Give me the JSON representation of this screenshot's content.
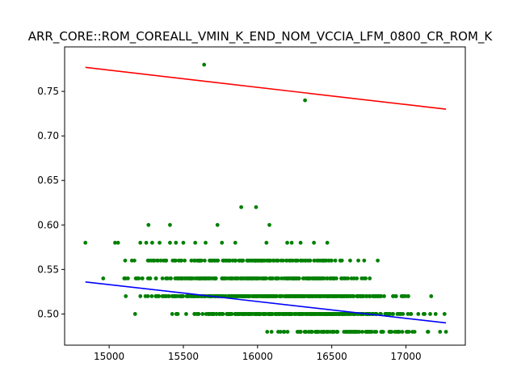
{
  "chart_data": {
    "type": "scatter",
    "title": "ARR_CORE::ROM_COREALL_VMIN_K_END_NOM_VCCIA_LFM_0800_CR_ROM_K",
    "xlabel": "",
    "ylabel": "",
    "xlim": [
      14700,
      17400
    ],
    "ylim": [
      0.465,
      0.8
    ],
    "x_ticks": [
      15000,
      15500,
      16000,
      16500,
      17000
    ],
    "y_ticks": [
      0.5,
      0.55,
      0.6,
      0.65,
      0.7,
      0.75
    ],
    "x_tick_labels": [
      "15000",
      "15500",
      "16000",
      "16500",
      "17000"
    ],
    "y_tick_labels": [
      "0.50",
      "0.55",
      "0.60",
      "0.65",
      "0.70",
      "0.75"
    ],
    "grid": false,
    "colors": {
      "points": "#008000",
      "upper_fit": "#ff0000",
      "lower_fit": "#0000ff",
      "axes": "#000000"
    },
    "bands": [
      {
        "y": 0.48,
        "x_start": 15900,
        "x_end": 17250,
        "count": 90
      },
      {
        "y": 0.5,
        "x_start": 15330,
        "x_end": 17200,
        "count": 320
      },
      {
        "y": 0.52,
        "x_start": 15050,
        "x_end": 17150,
        "count": 360
      },
      {
        "y": 0.54,
        "x_start": 15050,
        "x_end": 16850,
        "count": 240
      },
      {
        "y": 0.56,
        "x_start": 15050,
        "x_end": 16800,
        "count": 170
      }
    ],
    "points": [
      {
        "x": 14840,
        "y": 0.58
      },
      {
        "x": 15040,
        "y": 0.58
      },
      {
        "x": 15060,
        "y": 0.58
      },
      {
        "x": 15210,
        "y": 0.58
      },
      {
        "x": 15250,
        "y": 0.58
      },
      {
        "x": 15290,
        "y": 0.58
      },
      {
        "x": 15340,
        "y": 0.58
      },
      {
        "x": 15410,
        "y": 0.58
      },
      {
        "x": 15450,
        "y": 0.58
      },
      {
        "x": 15500,
        "y": 0.58
      },
      {
        "x": 15580,
        "y": 0.58
      },
      {
        "x": 15650,
        "y": 0.58
      },
      {
        "x": 15760,
        "y": 0.58
      },
      {
        "x": 15850,
        "y": 0.58
      },
      {
        "x": 16060,
        "y": 0.58
      },
      {
        "x": 16200,
        "y": 0.58
      },
      {
        "x": 16230,
        "y": 0.58
      },
      {
        "x": 16290,
        "y": 0.58
      },
      {
        "x": 16380,
        "y": 0.58
      },
      {
        "x": 16470,
        "y": 0.58
      },
      {
        "x": 15265,
        "y": 0.6
      },
      {
        "x": 15410,
        "y": 0.6
      },
      {
        "x": 15730,
        "y": 0.6
      },
      {
        "x": 16080,
        "y": 0.6
      },
      {
        "x": 15890,
        "y": 0.62
      },
      {
        "x": 15990,
        "y": 0.62
      },
      {
        "x": 16810,
        "y": 0.56
      },
      {
        "x": 14960,
        "y": 0.54
      },
      {
        "x": 17170,
        "y": 0.52
      },
      {
        "x": 15175,
        "y": 0.5
      },
      {
        "x": 17200,
        "y": 0.5
      },
      {
        "x": 17260,
        "y": 0.5
      },
      {
        "x": 17020,
        "y": 0.48
      },
      {
        "x": 17230,
        "y": 0.48
      },
      {
        "x": 17270,
        "y": 0.48
      },
      {
        "x": 15640,
        "y": 0.78
      },
      {
        "x": 16320,
        "y": 0.74
      }
    ],
    "series": [
      {
        "type": "line",
        "x": [
          14840,
          17270
        ],
        "y": [
          0.777,
          0.73
        ]
      },
      {
        "type": "line",
        "x": [
          14840,
          17270
        ],
        "y": [
          0.536,
          0.49
        ]
      }
    ]
  }
}
